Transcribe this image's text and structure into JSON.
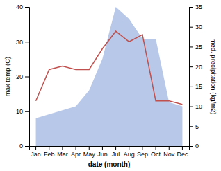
{
  "chart_data": {
    "type": "line",
    "categories": [
      "Jan",
      "Feb",
      "Mar",
      "Apr",
      "May",
      "Jun",
      "Jul",
      "Aug",
      "Sep",
      "Oct",
      "Nov",
      "Dec"
    ],
    "xlabel": "date (month)",
    "ylabel": "max temp (C)",
    "y2label": "med. precipitation (kg/m2)",
    "series": [
      {
        "type": "area",
        "axis": "y2",
        "color": "#b8c8e8",
        "values": [
          7,
          8,
          9,
          10,
          14,
          22,
          35,
          32,
          27,
          27,
          11,
          10
        ]
      },
      {
        "type": "line",
        "color": "#c0504d",
        "values": [
          13,
          22,
          23,
          22,
          22,
          28,
          33,
          30,
          32,
          13,
          13,
          12
        ]
      }
    ],
    "ylim": [
      0,
      40
    ],
    "yticks": [
      0,
      10,
      20,
      30,
      40
    ],
    "y2lim": [
      0,
      35
    ],
    "y2ticks": [
      0,
      5,
      10,
      15,
      20,
      25,
      30,
      35
    ]
  }
}
